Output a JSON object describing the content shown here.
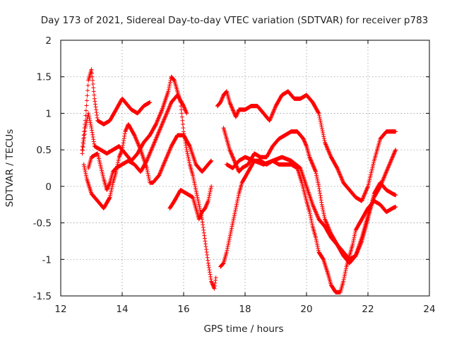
{
  "chart_data": {
    "type": "scatter",
    "title": "Day 173 of 2021, Sidereal Day-to-day VTEC variation (SDTVAR) for receiver p783",
    "xlabel": "GPS time / hours",
    "ylabel": "SDTVAR / TECUs",
    "xlim": [
      12,
      24
    ],
    "ylim": [
      -1.5,
      2
    ],
    "xticks": [
      "12",
      "14",
      "16",
      "18",
      "20",
      "22",
      "24"
    ],
    "yticks": [
      "2",
      "1.5",
      "1",
      "0.5",
      "0",
      "-0.5",
      "-1",
      "-1.5"
    ],
    "grid": true,
    "marker": "+",
    "color": "#ff0000",
    "series": [
      {
        "name": "trace-1",
        "points": [
          [
            12.7,
            0.5
          ],
          [
            12.8,
            0.9
          ],
          [
            12.9,
            1.45
          ],
          [
            13.0,
            1.6
          ],
          [
            13.1,
            1.2
          ],
          [
            13.2,
            0.9
          ],
          [
            13.4,
            0.85
          ],
          [
            13.6,
            0.9
          ],
          [
            13.8,
            1.05
          ],
          [
            14.0,
            1.2
          ],
          [
            14.1,
            1.15
          ],
          [
            14.3,
            1.05
          ],
          [
            14.5,
            1.0
          ],
          [
            14.7,
            1.1
          ],
          [
            14.9,
            1.15
          ]
        ]
      },
      {
        "name": "trace-2",
        "points": [
          [
            12.7,
            0.45
          ],
          [
            12.8,
            0.8
          ],
          [
            12.9,
            1.0
          ],
          [
            13.0,
            0.8
          ],
          [
            13.1,
            0.55
          ],
          [
            13.3,
            0.5
          ],
          [
            13.5,
            0.45
          ],
          [
            13.7,
            0.5
          ],
          [
            13.9,
            0.55
          ],
          [
            14.1,
            0.45
          ],
          [
            14.3,
            0.35
          ],
          [
            14.5,
            0.45
          ],
          [
            14.7,
            0.6
          ],
          [
            14.9,
            0.7
          ],
          [
            15.1,
            0.85
          ],
          [
            15.3,
            1.05
          ],
          [
            15.5,
            1.3
          ],
          [
            15.6,
            1.5
          ],
          [
            15.7,
            1.45
          ],
          [
            15.8,
            1.3
          ],
          [
            15.9,
            1.15
          ],
          [
            16.0,
            0.75
          ],
          [
            16.1,
            0.5
          ],
          [
            16.2,
            0.3
          ],
          [
            16.3,
            0.15
          ],
          [
            16.4,
            -0.05
          ],
          [
            16.5,
            -0.25
          ],
          [
            16.6,
            -0.45
          ],
          [
            16.7,
            -0.75
          ],
          [
            16.8,
            -1.05
          ],
          [
            16.9,
            -1.3
          ],
          [
            17.0,
            -1.4
          ],
          [
            17.05,
            -1.25
          ]
        ]
      },
      {
        "name": "trace-3",
        "points": [
          [
            12.75,
            0.3
          ],
          [
            12.85,
            0.1
          ],
          [
            13.0,
            -0.1
          ],
          [
            13.2,
            -0.2
          ],
          [
            13.4,
            -0.3
          ],
          [
            13.6,
            -0.15
          ],
          [
            13.7,
            0.05
          ],
          [
            13.8,
            0.2
          ],
          [
            13.9,
            0.4
          ],
          [
            14.0,
            0.5
          ],
          [
            14.1,
            0.75
          ],
          [
            14.2,
            0.85
          ],
          [
            14.4,
            0.7
          ],
          [
            14.6,
            0.5
          ],
          [
            14.8,
            0.25
          ],
          [
            14.9,
            0.05
          ],
          [
            15.0,
            0.05
          ],
          [
            15.2,
            0.15
          ],
          [
            15.4,
            0.35
          ],
          [
            15.6,
            0.55
          ],
          [
            15.8,
            0.7
          ],
          [
            16.0,
            0.7
          ],
          [
            16.2,
            0.55
          ],
          [
            16.4,
            0.3
          ],
          [
            16.6,
            0.2
          ],
          [
            16.8,
            0.3
          ],
          [
            16.9,
            0.35
          ]
        ]
      },
      {
        "name": "trace-4",
        "points": [
          [
            12.9,
            0.25
          ],
          [
            13.0,
            0.4
          ],
          [
            13.2,
            0.45
          ],
          [
            13.4,
            0.1
          ],
          [
            13.5,
            -0.05
          ],
          [
            13.6,
            0.05
          ],
          [
            13.7,
            0.2
          ],
          [
            13.8,
            0.25
          ],
          [
            14.0,
            0.3
          ],
          [
            14.2,
            0.35
          ],
          [
            14.4,
            0.3
          ],
          [
            14.6,
            0.2
          ],
          [
            14.8,
            0.35
          ],
          [
            15.0,
            0.55
          ],
          [
            15.2,
            0.75
          ],
          [
            15.4,
            0.95
          ],
          [
            15.6,
            1.15
          ],
          [
            15.8,
            1.25
          ],
          [
            16.0,
            1.1
          ],
          [
            16.1,
            1.0
          ]
        ]
      },
      {
        "name": "trace-5",
        "points": [
          [
            15.55,
            -0.3
          ],
          [
            15.7,
            -0.2
          ],
          [
            15.9,
            -0.05
          ],
          [
            16.1,
            -0.1
          ],
          [
            16.3,
            -0.15
          ],
          [
            16.4,
            -0.3
          ],
          [
            16.5,
            -0.45
          ],
          [
            16.6,
            -0.35
          ],
          [
            16.7,
            -0.3
          ],
          [
            16.8,
            -0.2
          ],
          [
            16.9,
            0.0
          ]
        ]
      },
      {
        "name": "trace-6",
        "points": [
          [
            17.2,
            -1.1
          ],
          [
            17.3,
            -1.05
          ],
          [
            17.4,
            -0.9
          ],
          [
            17.5,
            -0.7
          ],
          [
            17.6,
            -0.5
          ],
          [
            17.7,
            -0.3
          ],
          [
            17.8,
            -0.1
          ],
          [
            17.9,
            0.05
          ],
          [
            18.1,
            0.2
          ],
          [
            18.3,
            0.35
          ],
          [
            18.5,
            0.35
          ],
          [
            18.7,
            0.3
          ],
          [
            18.9,
            0.35
          ],
          [
            19.1,
            0.3
          ],
          [
            19.3,
            0.3
          ],
          [
            19.5,
            0.3
          ],
          [
            19.7,
            0.25
          ],
          [
            19.85,
            0.05
          ],
          [
            20.0,
            -0.2
          ],
          [
            20.1,
            -0.35
          ],
          [
            20.2,
            -0.55
          ],
          [
            20.3,
            -0.7
          ],
          [
            20.4,
            -0.9
          ],
          [
            20.55,
            -1.0
          ],
          [
            20.7,
            -1.2
          ],
          [
            20.8,
            -1.35
          ],
          [
            20.95,
            -1.45
          ],
          [
            21.1,
            -1.45
          ],
          [
            21.2,
            -1.3
          ],
          [
            21.3,
            -1.1
          ],
          [
            21.4,
            -0.95
          ],
          [
            21.5,
            -0.8
          ],
          [
            21.6,
            -0.6
          ],
          [
            21.8,
            -0.45
          ],
          [
            22.0,
            -0.3
          ],
          [
            22.2,
            -0.2
          ],
          [
            22.4,
            -0.25
          ],
          [
            22.6,
            -0.35
          ],
          [
            22.8,
            -0.3
          ],
          [
            22.9,
            -0.28
          ]
        ]
      },
      {
        "name": "trace-7",
        "points": [
          [
            17.3,
            0.8
          ],
          [
            17.4,
            0.65
          ],
          [
            17.5,
            0.5
          ],
          [
            17.6,
            0.4
          ],
          [
            17.7,
            0.3
          ],
          [
            17.8,
            0.2
          ],
          [
            17.9,
            0.25
          ],
          [
            18.1,
            0.3
          ],
          [
            18.3,
            0.45
          ],
          [
            18.5,
            0.4
          ],
          [
            18.7,
            0.4
          ],
          [
            18.9,
            0.55
          ],
          [
            19.1,
            0.65
          ],
          [
            19.3,
            0.7
          ],
          [
            19.5,
            0.75
          ],
          [
            19.7,
            0.75
          ],
          [
            19.9,
            0.65
          ],
          [
            20.0,
            0.55
          ],
          [
            20.1,
            0.4
          ],
          [
            20.2,
            0.3
          ],
          [
            20.3,
            0.2
          ],
          [
            20.4,
            0.0
          ],
          [
            20.5,
            -0.25
          ],
          [
            20.6,
            -0.45
          ],
          [
            20.8,
            -0.65
          ],
          [
            21.0,
            -0.8
          ],
          [
            21.2,
            -0.9
          ],
          [
            21.4,
            -1.0
          ],
          [
            21.6,
            -0.95
          ],
          [
            21.8,
            -0.7
          ],
          [
            22.0,
            -0.4
          ],
          [
            22.2,
            -0.15
          ],
          [
            22.4,
            0.0
          ],
          [
            22.6,
            0.2
          ],
          [
            22.8,
            0.4
          ],
          [
            22.9,
            0.5
          ]
        ]
      },
      {
        "name": "trace-8",
        "points": [
          [
            17.1,
            1.1
          ],
          [
            17.2,
            1.15
          ],
          [
            17.3,
            1.25
          ],
          [
            17.4,
            1.3
          ],
          [
            17.5,
            1.15
          ],
          [
            17.6,
            1.05
          ],
          [
            17.7,
            0.95
          ],
          [
            17.8,
            1.05
          ],
          [
            18.0,
            1.05
          ],
          [
            18.2,
            1.1
          ],
          [
            18.4,
            1.1
          ],
          [
            18.6,
            1.0
          ],
          [
            18.8,
            0.9
          ],
          [
            19.0,
            1.1
          ],
          [
            19.2,
            1.25
          ],
          [
            19.4,
            1.3
          ],
          [
            19.6,
            1.2
          ],
          [
            19.8,
            1.2
          ],
          [
            20.0,
            1.25
          ],
          [
            20.2,
            1.15
          ],
          [
            20.4,
            1.0
          ],
          [
            20.6,
            0.6
          ],
          [
            20.8,
            0.4
          ],
          [
            21.0,
            0.25
          ],
          [
            21.2,
            0.05
          ],
          [
            21.4,
            -0.05
          ],
          [
            21.6,
            -0.15
          ],
          [
            21.8,
            -0.2
          ],
          [
            22.0,
            0.0
          ],
          [
            22.2,
            0.35
          ],
          [
            22.4,
            0.65
          ],
          [
            22.6,
            0.75
          ],
          [
            22.8,
            0.75
          ],
          [
            22.9,
            0.75
          ]
        ]
      },
      {
        "name": "trace-9",
        "points": [
          [
            17.4,
            0.3
          ],
          [
            17.6,
            0.25
          ],
          [
            17.8,
            0.35
          ],
          [
            18.0,
            0.4
          ],
          [
            18.3,
            0.35
          ],
          [
            18.6,
            0.3
          ],
          [
            18.9,
            0.35
          ],
          [
            19.2,
            0.4
          ],
          [
            19.5,
            0.35
          ],
          [
            19.8,
            0.25
          ],
          [
            20.0,
            0.0
          ],
          [
            20.2,
            -0.25
          ],
          [
            20.4,
            -0.45
          ],
          [
            20.6,
            -0.55
          ],
          [
            20.8,
            -0.7
          ],
          [
            21.0,
            -0.8
          ],
          [
            21.2,
            -0.95
          ],
          [
            21.4,
            -1.05
          ],
          [
            21.6,
            -0.95
          ],
          [
            21.8,
            -0.75
          ],
          [
            22.0,
            -0.45
          ],
          [
            22.2,
            -0.1
          ],
          [
            22.4,
            0.05
          ],
          [
            22.6,
            -0.05
          ],
          [
            22.8,
            -0.1
          ],
          [
            22.9,
            -0.12
          ]
        ]
      }
    ]
  }
}
